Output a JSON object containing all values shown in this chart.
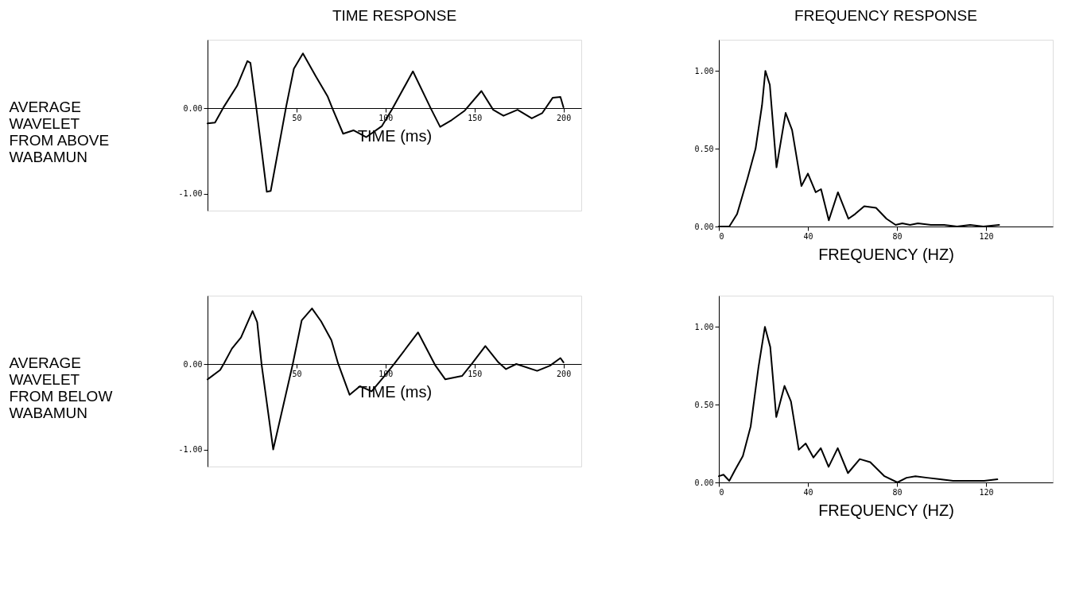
{
  "chart_data": [
    {
      "type": "line",
      "title": "TIME RESPONSE",
      "xlabel": "TIME (ms)",
      "ylabel": "AVERAGE\nWAVELET\nFROM ABOVE\nWABAMUN",
      "xlim": [
        0,
        210
      ],
      "ylim": [
        -1.2,
        0.8
      ],
      "xticks": [
        50,
        100,
        150,
        200
      ],
      "yticks": [
        {
          "value": -1,
          "label": "-1.00"
        },
        {
          "value": 0,
          "label": "0.00"
        }
      ],
      "grid": false,
      "series": [
        {
          "color": "#000000",
          "x": [
            0,
            4.2,
            9.3,
            16.6,
            22.4,
            24.1,
            27.5,
            33.3,
            35.5,
            44.2,
            48.5,
            53.6,
            60.9,
            67.4,
            70.3,
            76.2,
            82,
            89.2,
            98,
            103.8,
            115.4,
            125.6,
            130.7,
            137.2,
            144.5,
            153.9,
            160.5,
            166.3,
            174.2,
            182.2,
            188,
            193.9,
            198.3,
            200
          ],
          "values": [
            -0.18,
            -0.17,
            0.02,
            0.26,
            0.55,
            0.53,
            -0.01,
            -0.98,
            -0.97,
            0.02,
            0.46,
            0.64,
            0.37,
            0.14,
            -0.01,
            -0.3,
            -0.26,
            -0.34,
            -0.21,
            -0.01,
            0.43,
            -0.01,
            -0.22,
            -0.14,
            -0.03,
            0.2,
            -0.02,
            -0.09,
            -0.02,
            -0.12,
            -0.06,
            0.12,
            0.13,
            0.01
          ]
        }
      ]
    },
    {
      "type": "line",
      "title": "FREQUENCY RESPONSE",
      "xlabel": "FREQUENCY (HZ)",
      "xlim": [
        0,
        150
      ],
      "ylim": [
        0,
        1.2
      ],
      "xticks": [
        0,
        40,
        80,
        120
      ],
      "yticks": [
        {
          "value": 0,
          "label": "0.00"
        },
        {
          "value": 0.5,
          "label": "0.50"
        },
        {
          "value": 1,
          "label": "1.00"
        }
      ],
      "grid": false,
      "series": [
        {
          "color": "#000000",
          "x": [
            0,
            4.7,
            8.2,
            12.9,
            16.5,
            19.4,
            20.9,
            22.9,
            25.9,
            30,
            32.9,
            37.1,
            40,
            43.5,
            45.9,
            49.4,
            53.5,
            58.2,
            61.2,
            65.3,
            70.6,
            75.3,
            79.4,
            82.4,
            85.9,
            89.4,
            95.3,
            101.2,
            107,
            112.9,
            118.8,
            125.9
          ],
          "values": [
            0,
            0,
            0.08,
            0.31,
            0.5,
            0.78,
            1.0,
            0.91,
            0.38,
            0.73,
            0.62,
            0.26,
            0.34,
            0.22,
            0.24,
            0.04,
            0.22,
            0.05,
            0.08,
            0.13,
            0.12,
            0.05,
            0.01,
            0.02,
            0.01,
            0.02,
            0.01,
            0.01,
            0,
            0.01,
            0,
            0.01
          ]
        }
      ]
    },
    {
      "type": "line",
      "xlabel": "TIME (ms)",
      "ylabel": "AVERAGE\nWAVELET\nFROM BELOW\nWABAMUN",
      "xlim": [
        0,
        210
      ],
      "ylim": [
        -1.2,
        0.8
      ],
      "xticks": [
        50,
        100,
        150,
        200
      ],
      "yticks": [
        {
          "value": -1,
          "label": "-1.00"
        },
        {
          "value": 0,
          "label": "0.00"
        }
      ],
      "grid": false,
      "series": [
        {
          "color": "#000000",
          "x": [
            0,
            7.1,
            9.3,
            13.7,
            18.8,
            25.3,
            27.9,
            30.4,
            36.9,
            47.8,
            52.9,
            58.7,
            63.8,
            69.6,
            73.3,
            79.8,
            85.6,
            92.2,
            99.4,
            105.2,
            118.3,
            127.8,
            133.6,
            143,
            148.8,
            156.1,
            163.4,
            167.7,
            173.5,
            185.2,
            192.4,
            198.3,
            200
          ],
          "values": [
            -0.18,
            -0.07,
            0.01,
            0.18,
            0.31,
            0.62,
            0.49,
            -0.01,
            -1.0,
            -0.01,
            0.51,
            0.65,
            0.5,
            0.28,
            0.01,
            -0.36,
            -0.26,
            -0.32,
            -0.14,
            0.01,
            0.37,
            -0.01,
            -0.18,
            -0.14,
            0.01,
            0.21,
            0.02,
            -0.06,
            0,
            -0.08,
            -0.02,
            0.07,
            0.02
          ]
        }
      ]
    },
    {
      "type": "line",
      "xlabel": "FREQUENCY (HZ)",
      "xlim": [
        0,
        150
      ],
      "ylim": [
        0,
        1.2
      ],
      "xticks": [
        0,
        40,
        80,
        120
      ],
      "yticks": [
        {
          "value": 0,
          "label": "0.00"
        },
        {
          "value": 0.5,
          "label": "0.50"
        },
        {
          "value": 1,
          "label": "1.00"
        }
      ],
      "grid": false,
      "series": [
        {
          "color": "#000000",
          "x": [
            0,
            2.1,
            4.7,
            7.3,
            10.8,
            14.3,
            17.8,
            20.7,
            23.1,
            25.8,
            29.5,
            32.4,
            35.9,
            39,
            42.5,
            45.8,
            49.3,
            53.4,
            58,
            63.3,
            68,
            74.4,
            80.2,
            84.3,
            88.3,
            93.6,
            99.4,
            105.2,
            112.2,
            119.2,
            125.1
          ],
          "values": [
            0.04,
            0.05,
            0.01,
            0.08,
            0.17,
            0.36,
            0.74,
            1.0,
            0.87,
            0.42,
            0.62,
            0.52,
            0.21,
            0.25,
            0.16,
            0.22,
            0.1,
            0.22,
            0.06,
            0.15,
            0.13,
            0.04,
            0,
            0.03,
            0.04,
            0.03,
            0.02,
            0.01,
            0.01,
            0.01,
            0.02
          ]
        }
      ]
    }
  ]
}
